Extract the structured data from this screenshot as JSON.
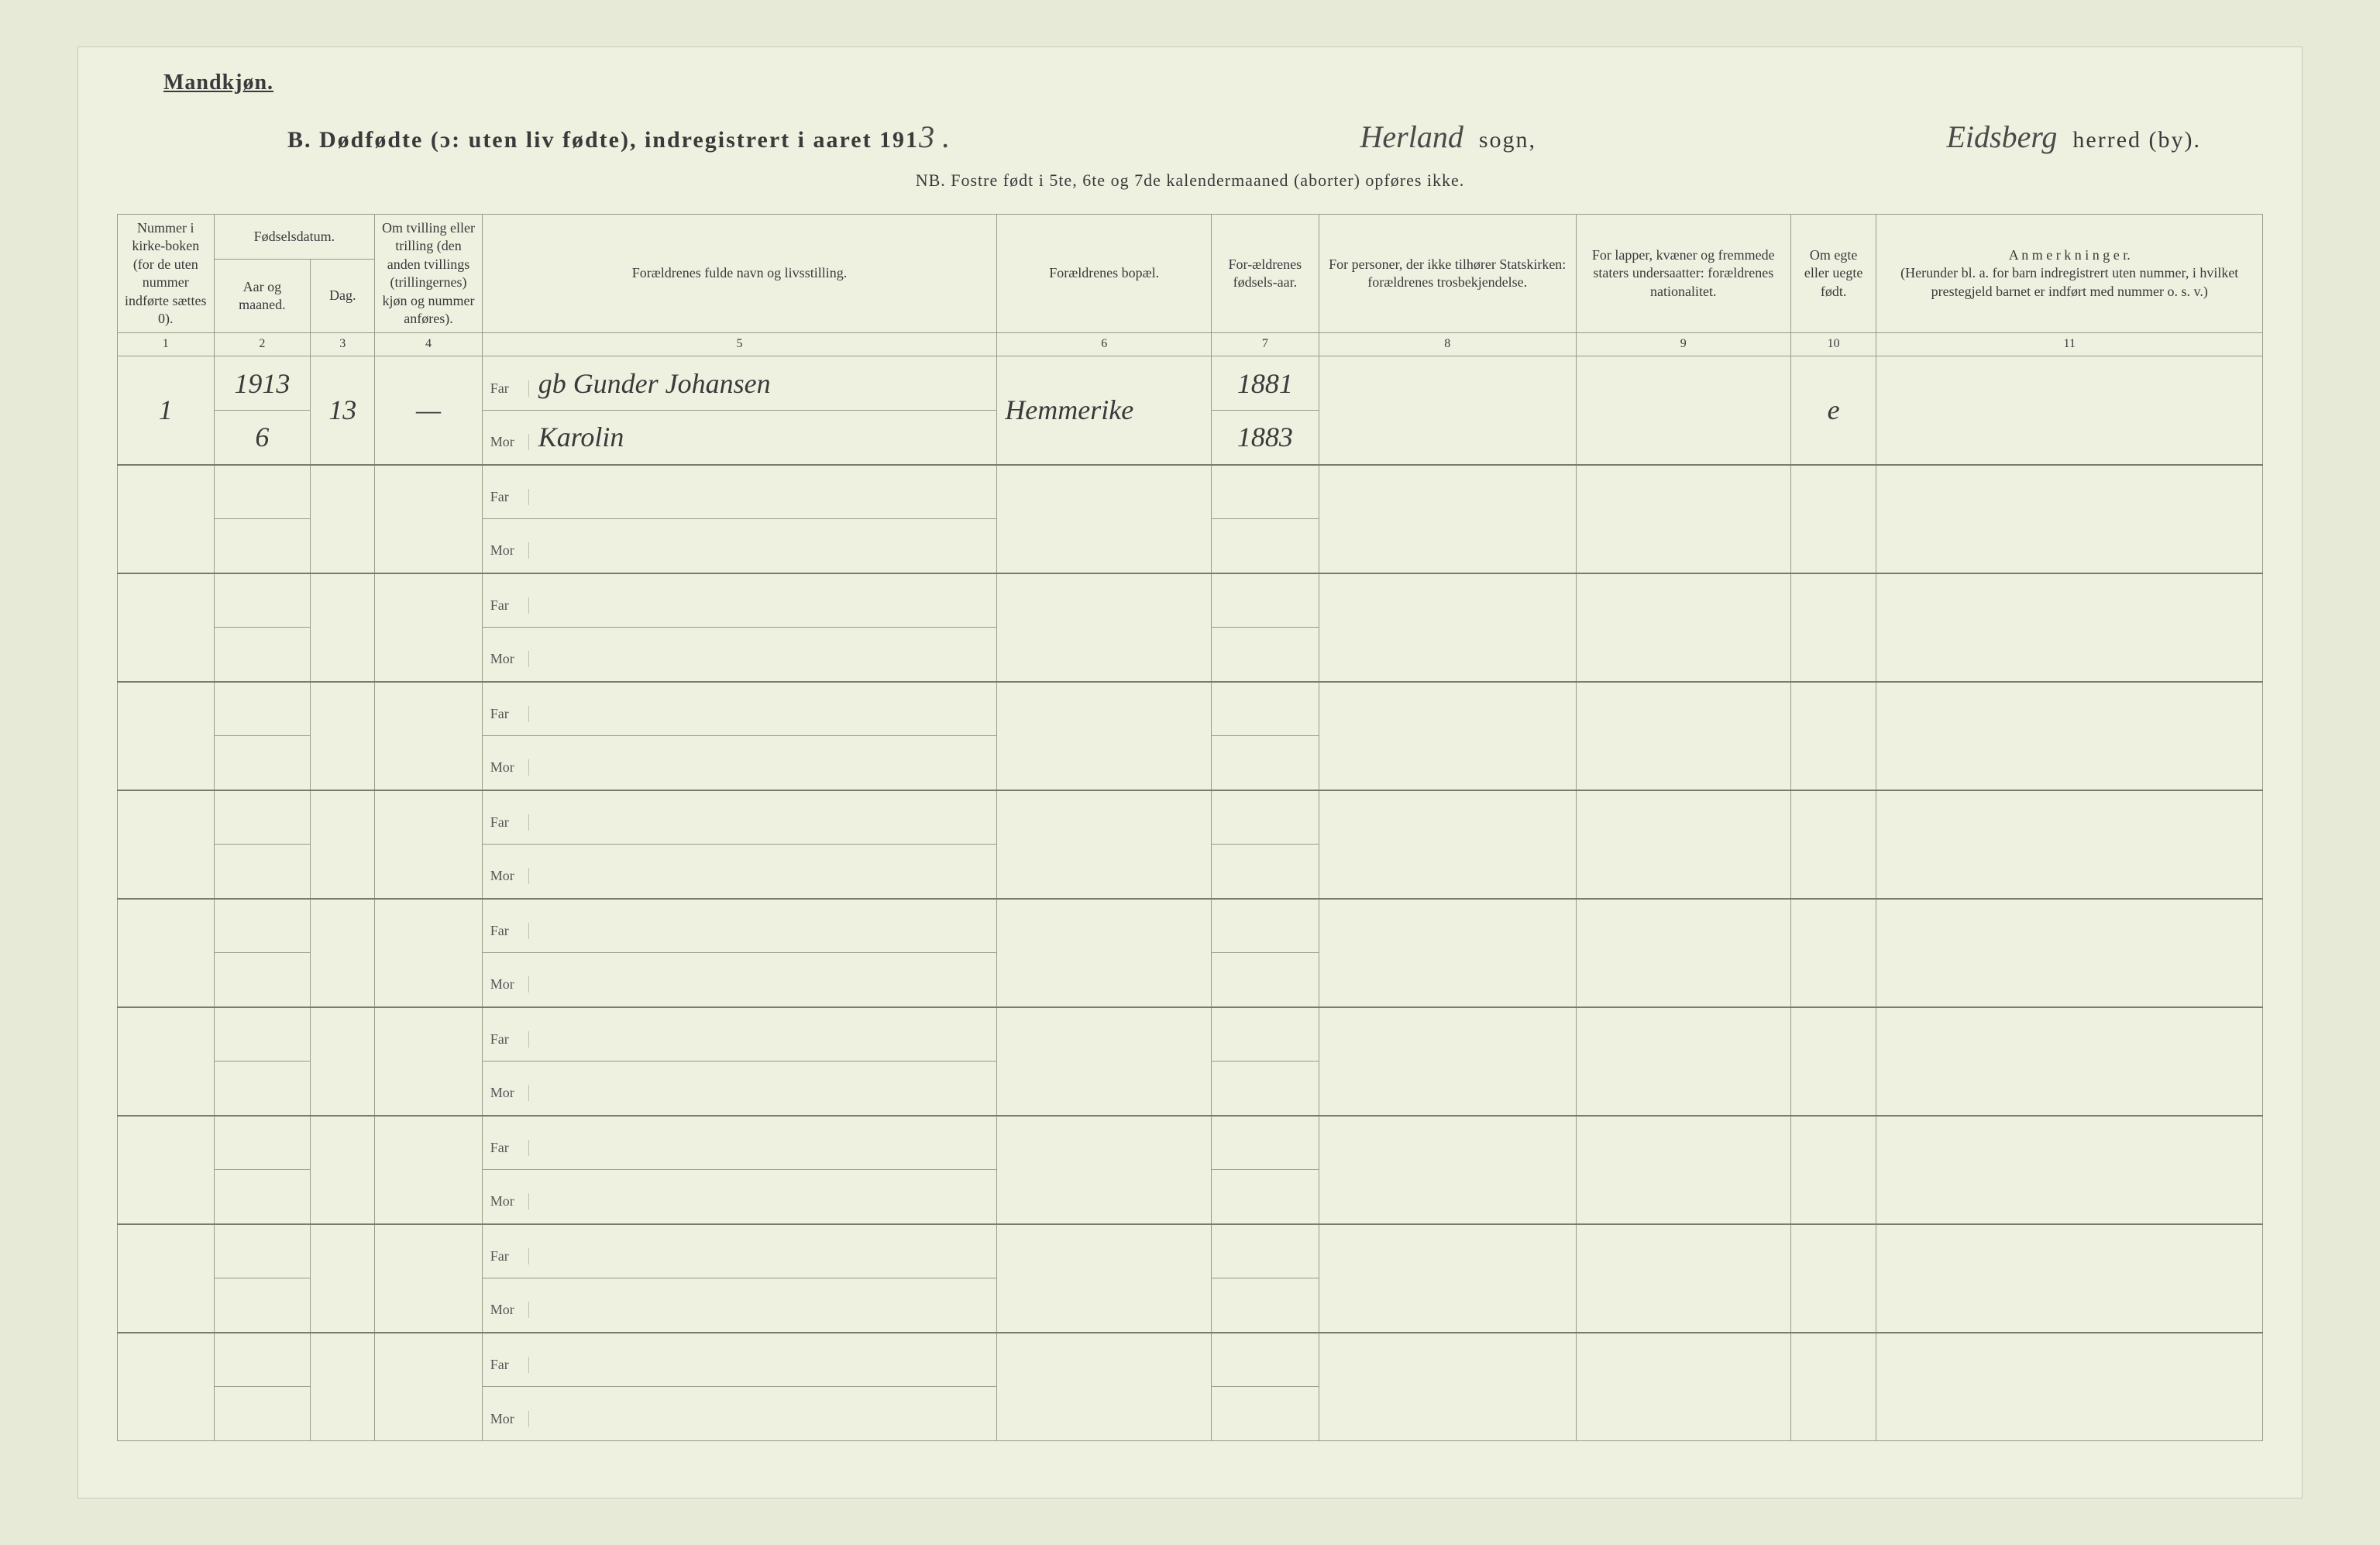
{
  "header": {
    "gender_label": "Mandkjøn.",
    "title_prefix": "B.  Dødfødte (ɔ: uten liv fødte), indregistrert i aaret 191",
    "year_suffix_handwritten": "3 .",
    "sogn_handwritten": "Herland",
    "sogn_label": "sogn,",
    "herred_handwritten": "Eidsberg",
    "herred_label": "herred (by).",
    "nb_line": "NB.  Fostre født i 5te, 6te og 7de kalendermaaned (aborter) opføres ikke."
  },
  "columns": {
    "c1_a": "Nummer i kirke-boken",
    "c1_b": "(for de uten nummer indførte sættes 0).",
    "c23_group": "Fødselsdatum.",
    "c2": "Aar og maaned.",
    "c3": "Dag.",
    "c4": "Om tvilling eller trilling (den anden tvillings (trillingernes) kjøn og nummer anføres).",
    "c5": "Forældrenes fulde navn og livsstilling.",
    "c6": "Forældrenes bopæl.",
    "c7": "For-ældrenes fødsels-aar.",
    "c8": "For personer, der ikke tilhører Statskirken: forældrenes trosbekjendelse.",
    "c9": "For lapper, kvæner og fremmede staters undersaatter: forældrenes nationalitet.",
    "c10": "Om egte eller uegte født.",
    "c11_a": "A n m e r k n i n g e r.",
    "c11_b": "(Herunder bl. a. for barn indregistrert uten nummer, i hvilket prestegjeld barnet er indført med nummer o. s. v.)",
    "nums": [
      "1",
      "2",
      "3",
      "4",
      "5",
      "6",
      "7",
      "8",
      "9",
      "10",
      "11"
    ],
    "far_label": "Far",
    "mor_label": "Mor"
  },
  "rows": [
    {
      "num": "1",
      "year": "1913",
      "month": "6",
      "day": "13",
      "twin": "—",
      "far_name": "gb Gunder Johansen",
      "mor_name": "Karolin",
      "residence": "Hemmerike",
      "far_birth": "1881",
      "mor_birth": "1883",
      "confession": "",
      "nationality": "",
      "legit": "e",
      "remarks": ""
    }
  ],
  "style": {
    "page_bg": "#eef0e0",
    "body_bg": "#e8ead8",
    "border_color": "#9a9c88",
    "heavy_border": "#7a7c68",
    "text_color": "#3a3a3a",
    "header_fontsize": 30,
    "th_fontsize": 18,
    "handwritten_fontsize": 36,
    "empty_row_count": 9
  }
}
